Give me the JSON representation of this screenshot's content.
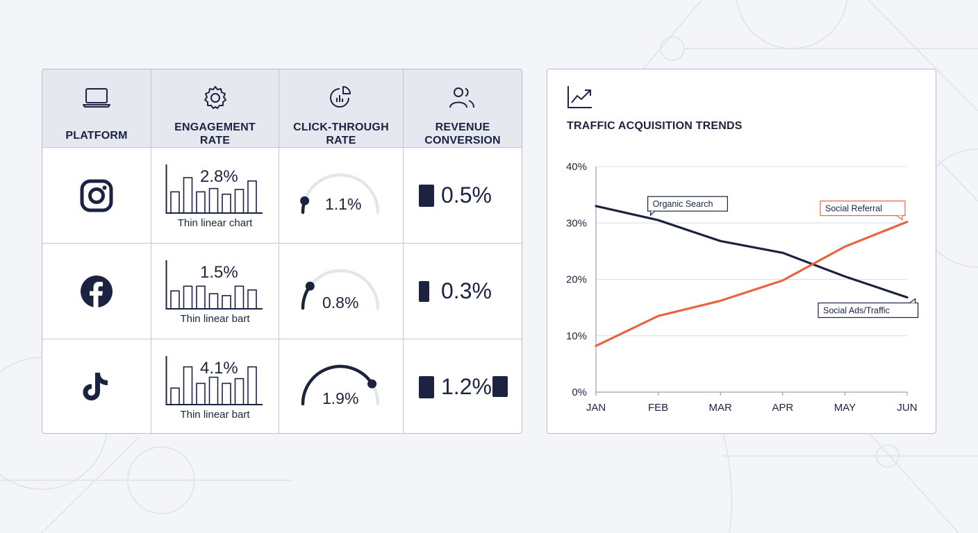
{
  "table": {
    "headers": [
      {
        "label": "PLATFORM",
        "icon": "laptop-icon"
      },
      {
        "label": "ENGAGEMENT\nRATE",
        "icon": "gear-icon"
      },
      {
        "label": "CLICK-THROUGH\nRATE",
        "icon": "pie-chart-icon"
      },
      {
        "label": "REVENUE\nCONVERSION",
        "icon": "users-icon"
      }
    ],
    "rows": [
      {
        "platform_icon": "instagram-icon",
        "engagement": {
          "value": "2.8%",
          "label": "Thin linear chart",
          "bars": [
            0.45,
            0.75,
            0.45,
            0.52,
            0.4,
            0.5,
            0.68
          ]
        },
        "ctr": {
          "value": "1.1%",
          "gauge_fraction": 0.1
        },
        "revenue": {
          "value": "0.5%",
          "blocks": 1
        }
      },
      {
        "platform_icon": "facebook-icon",
        "engagement": {
          "value": "1.5%",
          "label": "Thin linear bart",
          "bars": [
            0.38,
            0.48,
            0.48,
            0.32,
            0.28,
            0.48,
            0.4
          ]
        },
        "ctr": {
          "value": "0.8%",
          "gauge_fraction": 0.2
        },
        "revenue": {
          "value": "0.3%",
          "blocks": 1
        }
      },
      {
        "platform_icon": "tiktok-icon",
        "engagement": {
          "value": "4.1%",
          "label": "Thin linear bart",
          "bars": [
            0.35,
            0.8,
            0.45,
            0.58,
            0.45,
            0.55,
            0.8
          ]
        },
        "ctr": {
          "value": "1.9%",
          "gauge_fraction": 0.82
        },
        "revenue": {
          "value": "1.2%",
          "blocks": 2
        }
      }
    ]
  },
  "chart_data": {
    "type": "line",
    "title": "TRAFFIC ACQUISITION TRENDS",
    "title_icon": "trending-up-icon",
    "categories": [
      "JAN",
      "FEB",
      "MAR",
      "APR",
      "MAY",
      "JUN"
    ],
    "ylim": [
      0,
      40
    ],
    "yticks": [
      "0%",
      "10%",
      "20%",
      "30%",
      "40%"
    ],
    "grid": true,
    "series": [
      {
        "name": "Organic Search",
        "values": [
          33,
          30.5,
          26.8,
          24.7,
          20.5,
          16.8
        ],
        "color": "#1b2341"
      },
      {
        "name": "Social Referral",
        "values": [
          8.2,
          13.5,
          16.2,
          19.8,
          25.8,
          30.2
        ],
        "color": "#e8643f"
      }
    ],
    "annotations": [
      {
        "text": "Organic Search",
        "series": "Organic Search",
        "color": "#1b2341"
      },
      {
        "text": "Social Referral",
        "series": "Social Referral",
        "color": "#e8643f"
      },
      {
        "text": "Social Ads/Traffic",
        "series": "Organic Search",
        "color": "#1b2341"
      }
    ]
  }
}
